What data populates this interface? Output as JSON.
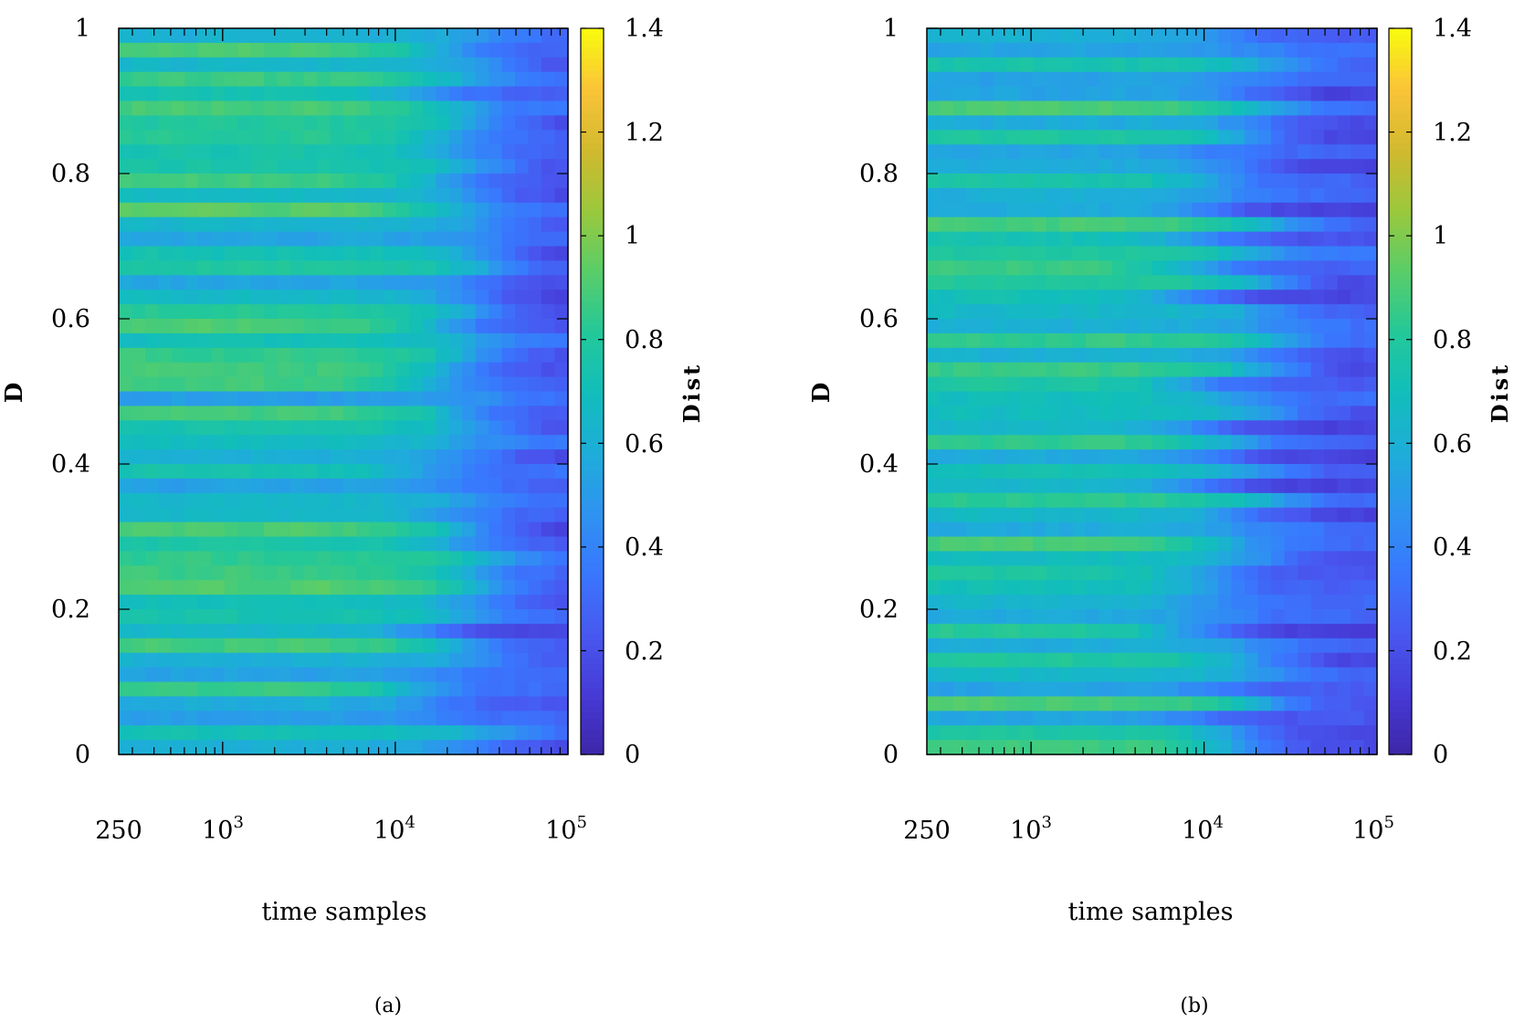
{
  "chart_data": [
    {
      "type": "heatmap",
      "panel": "(a)",
      "title": "",
      "xlabel": "time samples",
      "ylabel": "D",
      "xscale": "log",
      "xlim": [
        250,
        100000
      ],
      "xtick_labels": [
        {
          "value": 250,
          "text": "250"
        },
        {
          "value": 1000,
          "base": "10",
          "exp": "3"
        },
        {
          "value": 10000,
          "base": "10",
          "exp": "4"
        },
        {
          "value": 100000,
          "base": "10",
          "exp": "5"
        }
      ],
      "ylim": [
        0,
        1
      ],
      "yticks": [
        0,
        0.2,
        0.4,
        0.6,
        0.8,
        1
      ],
      "ytick_labels": [
        "0",
        "0.2",
        "0.4",
        "0.6",
        "0.8",
        "1"
      ],
      "colorbar": {
        "label": "Dist",
        "range": [
          0,
          1.4
        ],
        "ticks": [
          0,
          0.2,
          0.4,
          0.6,
          0.8,
          1,
          1.2,
          1.4
        ],
        "tick_labels": [
          "0",
          "0.2",
          "0.4",
          "0.6",
          "0.8",
          "1",
          "1.2",
          "1.4"
        ],
        "colormap": "parula"
      },
      "rows": 50,
      "trend": "Dist about 0.6-1.1 at small time samples, falling to about 0.1-0.4 near 10^5",
      "threshold_log10_t": 4.35,
      "seed": 7
    },
    {
      "type": "heatmap",
      "panel": "(b)",
      "title": "",
      "xlabel": "time samples",
      "ylabel": "D",
      "xscale": "log",
      "xlim": [
        250,
        100000
      ],
      "xtick_labels": [
        {
          "value": 250,
          "text": "250"
        },
        {
          "value": 1000,
          "base": "10",
          "exp": "3"
        },
        {
          "value": 10000,
          "base": "10",
          "exp": "4"
        },
        {
          "value": 100000,
          "base": "10",
          "exp": "5"
        }
      ],
      "ylim": [
        0,
        1
      ],
      "yticks": [
        0,
        0.2,
        0.4,
        0.6,
        0.8,
        1
      ],
      "ytick_labels": [
        "0",
        "0.2",
        "0.4",
        "0.6",
        "0.8",
        "1"
      ],
      "colorbar": {
        "label": "Dist",
        "range": [
          0,
          1.4
        ],
        "ticks": [
          0,
          0.2,
          0.4,
          0.6,
          0.8,
          1,
          1.2,
          1.4
        ],
        "tick_labels": [
          "0",
          "0.2",
          "0.4",
          "0.6",
          "0.8",
          "1",
          "1.2",
          "1.4"
        ],
        "colormap": "parula"
      },
      "rows": 50,
      "trend": "Dist about 0.6-1.1 at small time samples, falling to about 0.05-0.3 near 10^5",
      "threshold_log10_t": 4.15,
      "seed": 23
    }
  ]
}
